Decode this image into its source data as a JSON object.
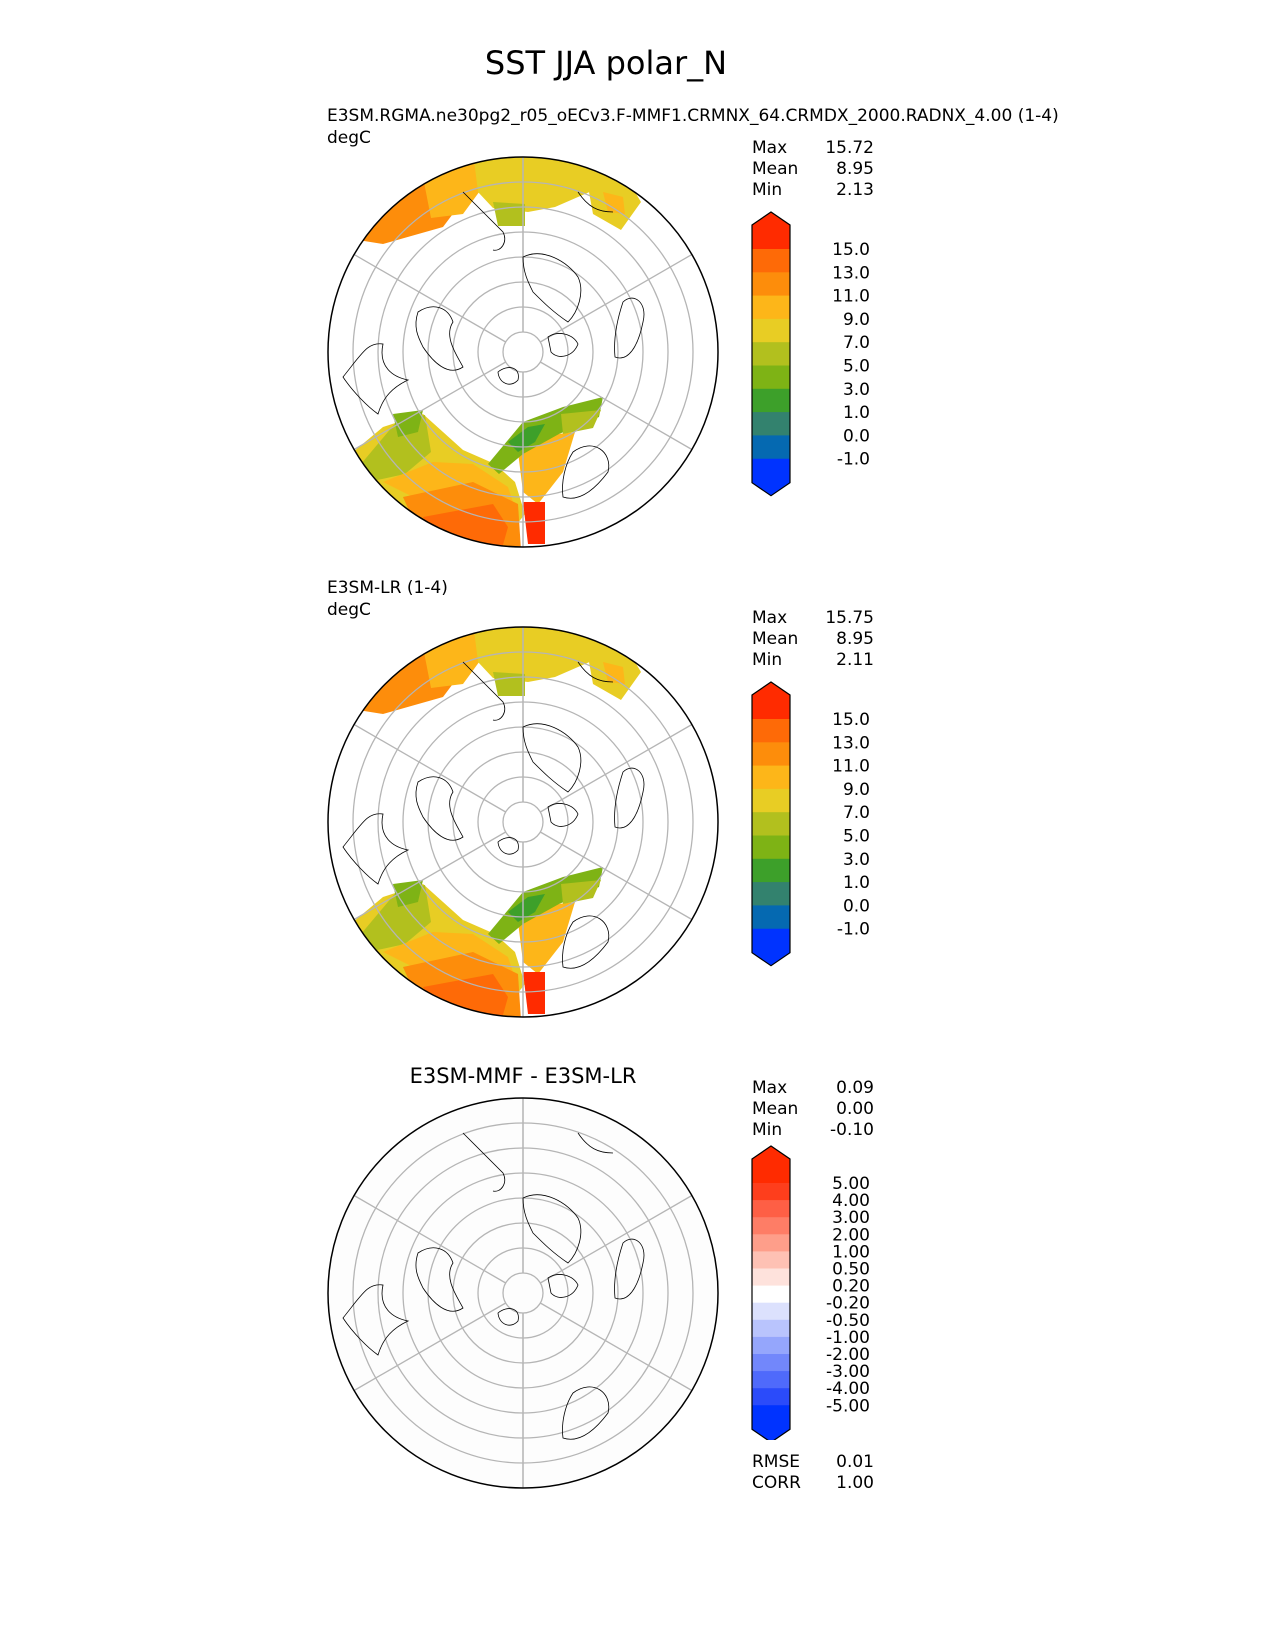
{
  "title": "SST JJA polar_N",
  "panels": [
    {
      "subtitle": "E3SM.RGMA.ne30pg2_r05_oECv3.F-MMF1.CRMNX_64.CRMDX_2000.RADNX_4.00 (1-4)",
      "units": "degC",
      "stats": {
        "max_label": "Max",
        "max": "15.72",
        "mean_label": "Mean",
        "mean": "8.95",
        "min_label": "Min",
        "min": "2.13"
      }
    },
    {
      "subtitle": "E3SM-LR (1-4)",
      "units": "degC",
      "stats": {
        "max_label": "Max",
        "max": "15.75",
        "mean_label": "Mean",
        "mean": "8.95",
        "min_label": "Min",
        "min": "2.11"
      }
    },
    {
      "title": "E3SM-MMF - E3SM-LR",
      "stats": {
        "max_label": "Max",
        "max": "0.09",
        "mean_label": "Mean",
        "mean": "0.00",
        "min_label": "Min",
        "min": "-0.10"
      },
      "metrics": {
        "rmse_label": "RMSE",
        "rmse": "0.01",
        "corr_label": "CORR",
        "corr": "1.00"
      }
    }
  ],
  "chart_data": {
    "type": "heatmap",
    "projection": "north polar stereographic",
    "variable": "SST",
    "season": "JJA",
    "units": "degC",
    "colorbar_main": {
      "levels": [
        "15.0",
        "13.0",
        "11.0",
        "9.0",
        "7.0",
        "5.0",
        "3.0",
        "1.0",
        "0.0",
        "-1.0"
      ],
      "colors": [
        "#ff2b00",
        "#fe6a07",
        "#fd8d0b",
        "#fdb619",
        "#e8cd24",
        "#b2c01e",
        "#7eb315",
        "#3da02a",
        "#33826e",
        "#0569b1",
        "#0033ff"
      ],
      "extend": "both"
    },
    "colorbar_diff": {
      "levels": [
        "5.00",
        "4.00",
        "3.00",
        "2.00",
        "1.00",
        "0.50",
        "0.20",
        "-0.20",
        "-0.50",
        "-1.00",
        "-2.00",
        "-3.00",
        "-4.00",
        "-5.00"
      ],
      "colors": [
        "#ff2b00",
        "#fe3e1c",
        "#fe5f45",
        "#fe7d66",
        "#fe9e8a",
        "#fec1b4",
        "#fee2dc",
        "#ffffff",
        "#dce1fd",
        "#b9c4fd",
        "#95a6fc",
        "#7287fb",
        "#4f6afb",
        "#2b4bfa",
        "#0033ff"
      ],
      "extend": "both"
    }
  }
}
